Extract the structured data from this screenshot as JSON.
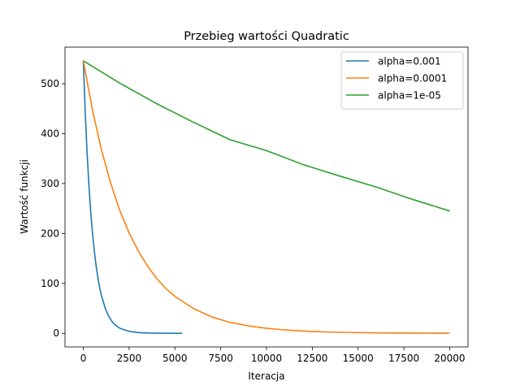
{
  "chart_data": {
    "type": "line",
    "title": "Przebieg wartości Quadratic",
    "xlabel": "Iteracja",
    "ylabel": "Wartość funkcji",
    "xlim": [
      -1000,
      21000
    ],
    "ylim": [
      -27.3,
      573.3
    ],
    "xticks": [
      0,
      2500,
      5000,
      7500,
      10000,
      12500,
      15000,
      17500,
      20000
    ],
    "yticks": [
      0,
      100,
      200,
      300,
      400,
      500
    ],
    "grid": false,
    "legend_position": "top-right",
    "series": [
      {
        "name": "alpha=0.001",
        "color": "#1f77b4",
        "x": [
          0,
          100,
          200,
          300,
          400,
          500,
          600,
          700,
          800,
          900,
          1000,
          1200,
          1400,
          1600,
          1800,
          2000,
          2500,
          3000,
          3500,
          4000,
          4500,
          5000,
          5400
        ],
        "y": [
          546,
          447,
          366,
          300,
          245,
          201,
          165,
          135,
          110,
          90,
          74,
          50,
          33,
          22,
          15,
          10,
          4,
          1.5,
          0.6,
          0.2,
          0.1,
          0.0,
          0.0
        ]
      },
      {
        "name": "alpha=0.0001",
        "color": "#ff7f0e",
        "x": [
          0,
          500,
          1000,
          1500,
          2000,
          2500,
          3000,
          3500,
          4000,
          4500,
          5000,
          6000,
          7000,
          8000,
          9000,
          10000,
          11000,
          12000,
          13000,
          14000,
          15000,
          16000,
          17000,
          18000,
          19000,
          20000
        ],
        "y": [
          546,
          447,
          366,
          300,
          245,
          201,
          165,
          135,
          110,
          90,
          74,
          50,
          33,
          22,
          15,
          10,
          6.7,
          4.5,
          3.0,
          2.0,
          1.4,
          0.9,
          0.6,
          0.4,
          0.3,
          0.2
        ]
      },
      {
        "name": "alpha=1e-05",
        "color": "#2ca02c",
        "x": [
          0,
          2000,
          4000,
          6000,
          8000,
          10000,
          12000,
          14000,
          16000,
          18000,
          20000
        ],
        "y": [
          546,
          501,
          460,
          423,
          388,
          366,
          338,
          315,
          293,
          268,
          245
        ]
      }
    ]
  }
}
